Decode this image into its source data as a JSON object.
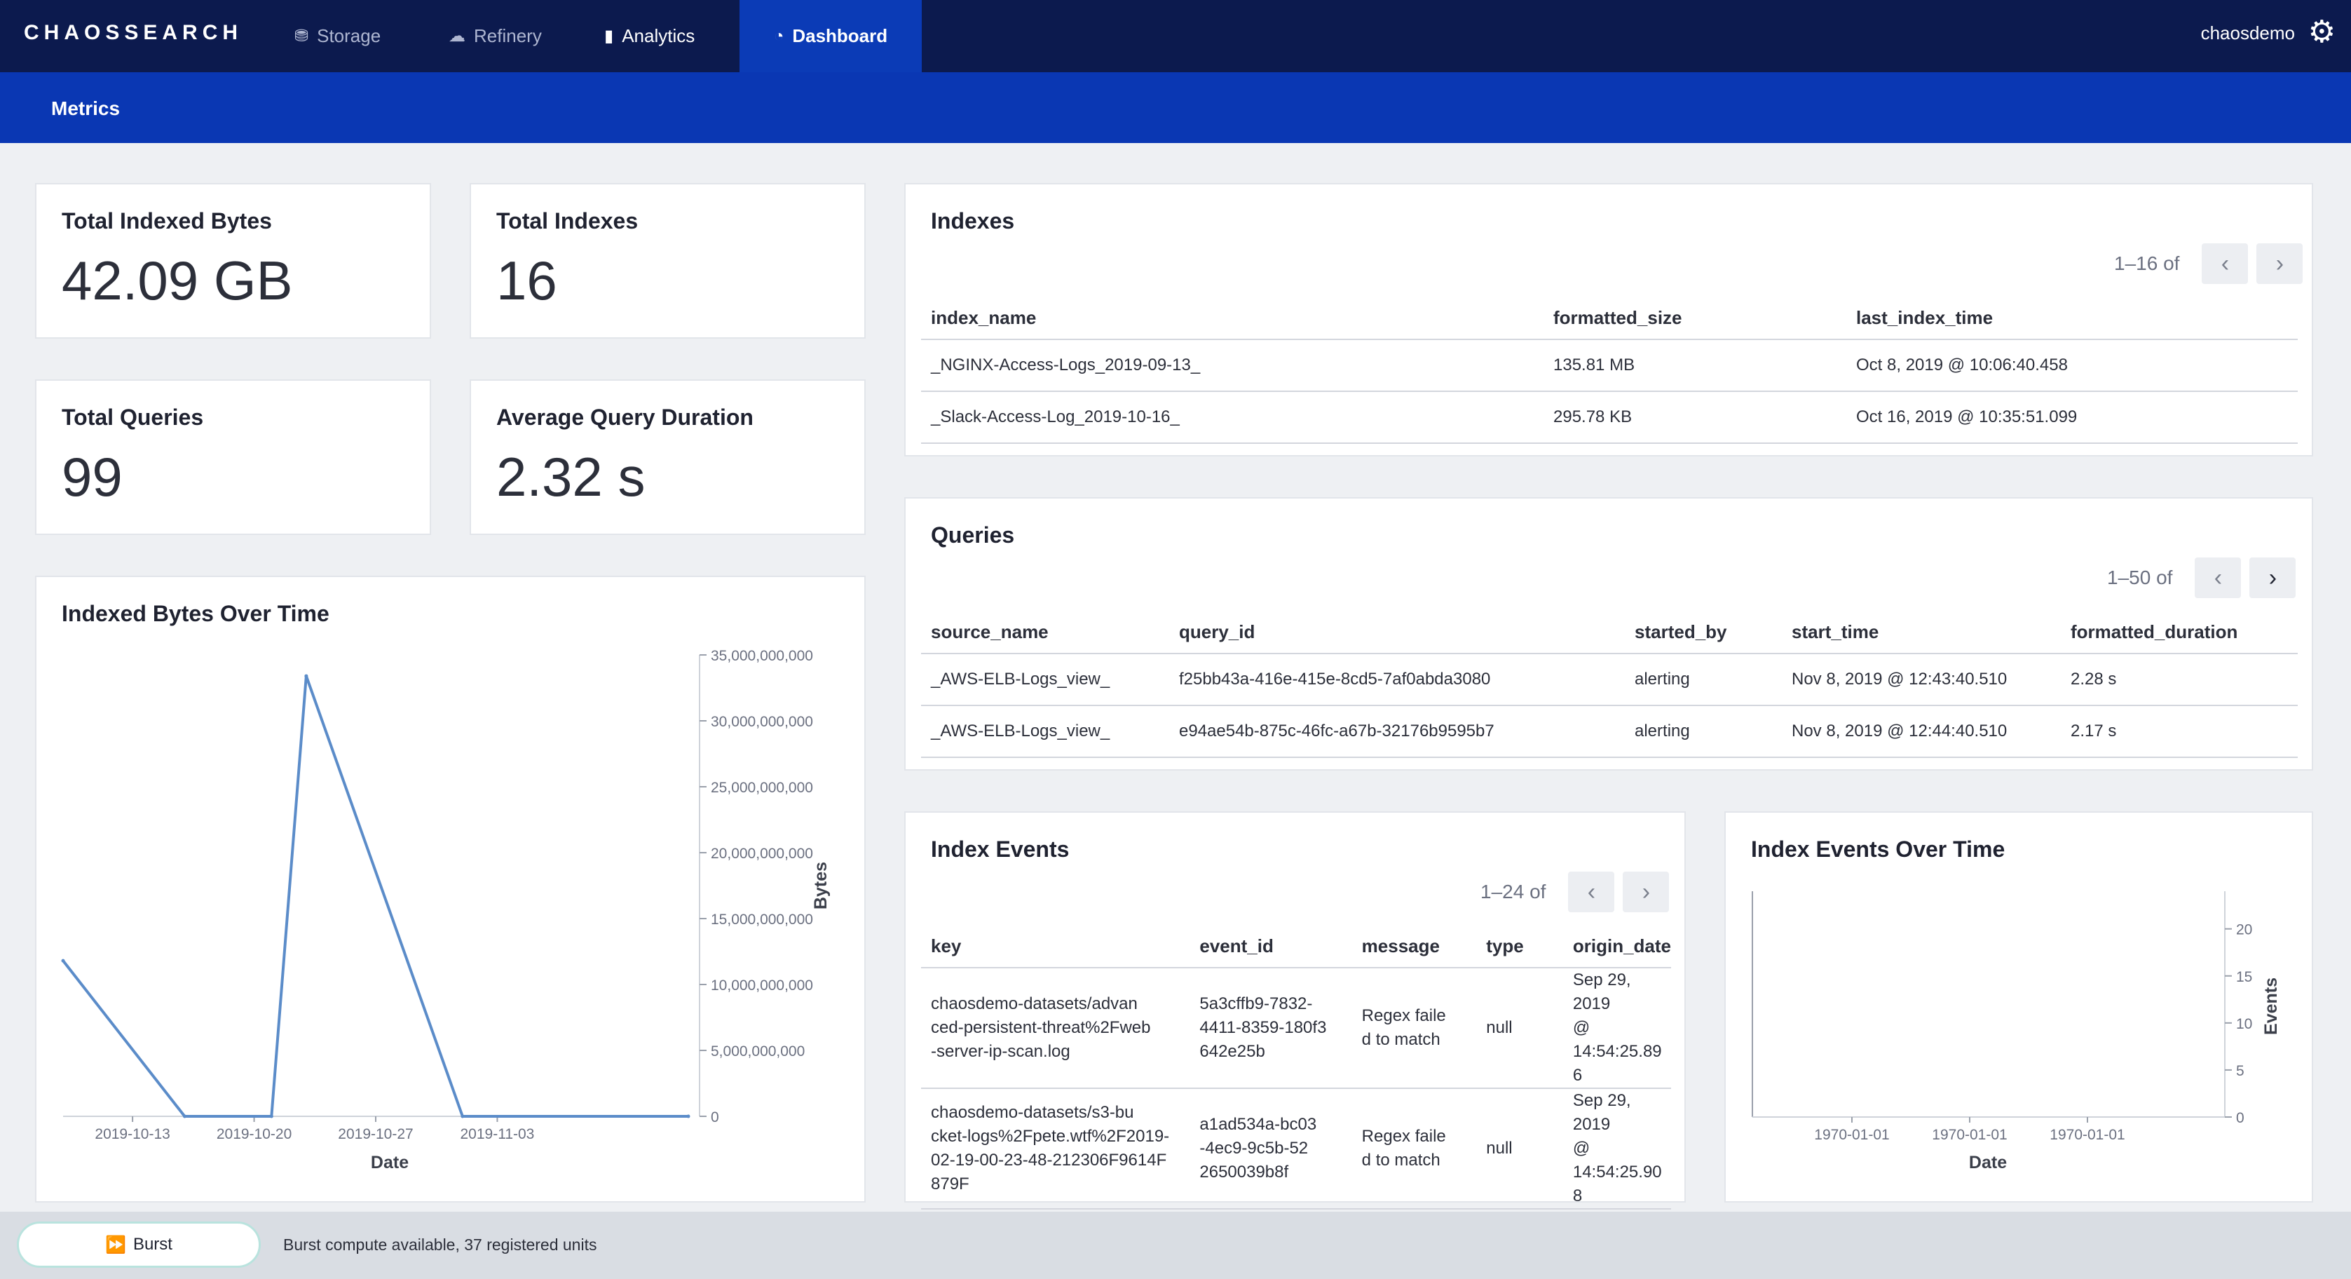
{
  "app": {
    "logo": "CHAOSSEARCH",
    "nav": [
      {
        "label": "Storage",
        "icon": "storage-icon",
        "glyph": "⛃"
      },
      {
        "label": "Refinery",
        "icon": "cloud-icon",
        "glyph": "☁"
      },
      {
        "label": "Analytics",
        "icon": "bar-chart-icon",
        "glyph": "▮"
      },
      {
        "label": "Dashboard",
        "icon": "dashboard-icon",
        "glyph": "◔"
      }
    ],
    "active_tab": "Dashboard",
    "user": "chaosdemo",
    "subtitle": "Metrics"
  },
  "stats": {
    "bytes": {
      "label": "Total Indexed Bytes",
      "value": "42.09 GB"
    },
    "indexes": {
      "label": "Total Indexes",
      "value": "16"
    },
    "queries": {
      "label": "Total Queries",
      "value": "99"
    },
    "duration": {
      "label": "Average Query Duration",
      "value": "2.32 s"
    }
  },
  "indexes": {
    "title": "Indexes",
    "pager": "1–16 of",
    "columns": [
      "index_name",
      "formatted_size",
      "last_index_time"
    ],
    "rows": [
      [
        "_NGINX-Access-Logs_2019-09-13_",
        "135.81 MB",
        "Oct 8, 2019 @ 10:06:40.458"
      ],
      [
        "_Slack-Access-Log_2019-10-16_",
        "295.78 KB",
        "Oct 16, 2019 @ 10:35:51.099"
      ]
    ]
  },
  "queries": {
    "title": "Queries",
    "pager": "1–50 of",
    "columns": [
      "source_name",
      "query_id",
      "started_by",
      "start_time",
      "formatted_duration"
    ],
    "rows": [
      [
        "_AWS-ELB-Logs_view_",
        "f25bb43a-416e-415e-8cd5-7af0abda3080",
        "alerting",
        "Nov 8, 2019 @ 12:43:40.510",
        "2.28 s"
      ],
      [
        "_AWS-ELB-Logs_view_",
        "e94ae54b-875c-46fc-a67b-32176b9595b7",
        "alerting",
        "Nov 8, 2019 @ 12:44:40.510",
        "2.17 s"
      ]
    ]
  },
  "index_events": {
    "title": "Index Events",
    "pager": "1–24 of",
    "columns": [
      "key",
      "event_id",
      "message",
      "type",
      "origin_date"
    ],
    "rows": [
      [
        [
          "chaosdemo-datasets/advan",
          "ced-persistent-threat%2Fweb",
          "-server-ip-scan.log"
        ],
        [
          "5a3cffb9-7832-",
          "4411-8359-180f3",
          "642e25b"
        ],
        [
          "Regex faile",
          "d to match"
        ],
        [
          "null"
        ],
        [
          "Sep 29, 2019",
          "@ 14:54:25.89",
          "6"
        ]
      ],
      [
        [
          "chaosdemo-datasets/s3-bu",
          "cket-logs%2Fpete.wtf%2F2019-",
          "02-19-00-23-48-212306F9614F",
          "879F"
        ],
        [
          "a1ad534a-bc03",
          "-4ec9-9c5b-52",
          "2650039b8f"
        ],
        [
          "Regex faile",
          "d to match"
        ],
        [
          "null"
        ],
        [
          "Sep 29, 2019",
          "@ 14:54:25.90",
          "8"
        ]
      ]
    ]
  },
  "chart_data": [
    {
      "type": "line",
      "title": "Indexed Bytes Over Time",
      "xlabel": "Date",
      "ylabel": "Bytes",
      "x": [
        "2019-10-09",
        "2019-10-16",
        "2019-10-21",
        "2019-10-23",
        "2019-11-01",
        "2019-11-14"
      ],
      "series": [
        {
          "values": [
            11800000000,
            0,
            0,
            33400000000,
            0,
            0
          ]
        }
      ],
      "xticks": [
        "2019-10-13",
        "2019-10-20",
        "2019-10-27",
        "2019-11-03"
      ],
      "yticks": [
        "35,000,000,000",
        "30,000,000,000",
        "25,000,000,000",
        "20,000,000,000",
        "15,000,000,000",
        "10,000,000,000",
        "5,000,000,000",
        "0"
      ],
      "ylim": [
        0,
        35000000000
      ],
      "y_axis_side": "right",
      "color": "#5b8cc9"
    },
    {
      "type": "line",
      "title": "Index Events Over Time",
      "xlabel": "Date",
      "ylabel": "Events",
      "xticks": [
        "1970-01-01",
        "1970-01-01",
        "1970-01-01"
      ],
      "yticks": [
        "20",
        "15",
        "10",
        "5",
        "0"
      ],
      "ylim": [
        0,
        24
      ],
      "y_axis_side": "right",
      "series": []
    }
  ],
  "footer": {
    "button": "Burst",
    "note": "Burst compute available, 37 registered units"
  }
}
